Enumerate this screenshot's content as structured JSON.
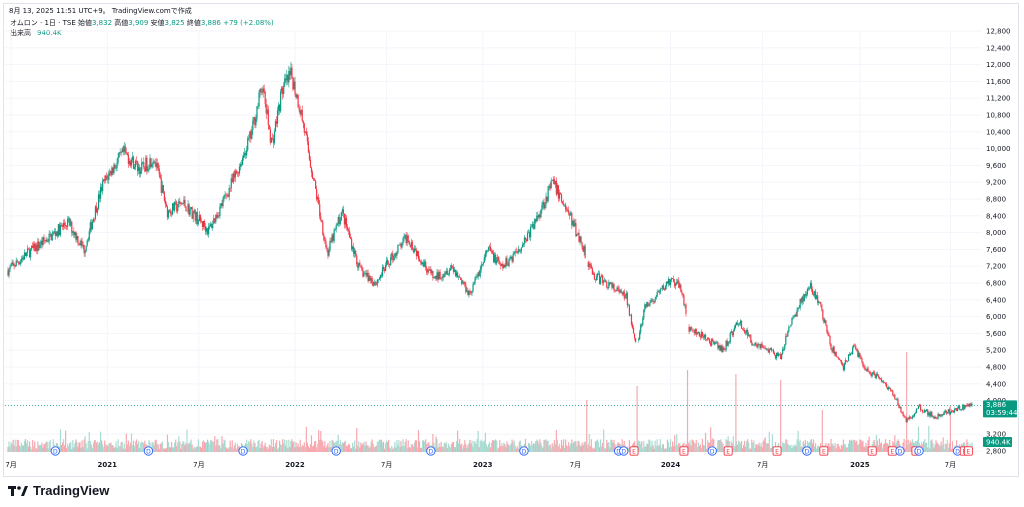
{
  "header": {
    "timestamp": "8月 13, 2025 11:51 UTC+9。 TradingView.comで作成"
  },
  "legend": {
    "symbol": "オムロン · 1日 · TSE",
    "open_label": "始値",
    "open": "3,832",
    "high_label": "高値",
    "high": "3,909",
    "low_label": "安値",
    "low": "3,825",
    "close_label": "終値",
    "close": "3,886",
    "change": "+79 (+2.08%)"
  },
  "volume": {
    "label": "出来高",
    "value": "940.4K"
  },
  "price_tag": {
    "price": "3,886",
    "countdown": "03:59:44",
    "color": "#089981"
  },
  "volume_tag": {
    "value": "940.4K"
  },
  "footer": {
    "brand": "TradingView"
  },
  "colors": {
    "up": "#089981",
    "down": "#f23645",
    "grid": "#f0f3fa",
    "dividend": "#2962ff",
    "earnings": "#f23645"
  },
  "chart_data": {
    "type": "candlestick",
    "y_axis_ticks": [
      "12,800",
      "12,400",
      "12,000",
      "11,600",
      "11,200",
      "10,800",
      "10,400",
      "10,000",
      "9,600",
      "9,200",
      "8,800",
      "8,400",
      "8,000",
      "7,600",
      "7,200",
      "6,800",
      "6,400",
      "6,000",
      "5,600",
      "5,200",
      "4,800",
      "4,400",
      "4,000",
      "3,200",
      "2,800"
    ],
    "ylim": [
      2800,
      12800
    ],
    "x_axis_ticks": [
      {
        "label": "7月",
        "bold": false
      },
      {
        "label": "2021",
        "bold": true
      },
      {
        "label": "7月",
        "bold": false
      },
      {
        "label": "2022",
        "bold": true
      },
      {
        "label": "7月",
        "bold": false
      },
      {
        "label": "2023",
        "bold": true
      },
      {
        "label": "7月",
        "bold": false
      },
      {
        "label": "2024",
        "bold": true
      },
      {
        "label": "7月",
        "bold": false
      },
      {
        "label": "2025",
        "bold": true
      },
      {
        "label": "7月",
        "bold": false
      }
    ],
    "price_path": [
      [
        "2020-06-25",
        7100
      ],
      [
        "2020-08-01",
        7500
      ],
      [
        "2020-09-15",
        7900
      ],
      [
        "2020-10-20",
        8250
      ],
      [
        "2020-11-20",
        7600
      ],
      [
        "2020-12-25",
        9100
      ],
      [
        "2021-01-10",
        9450
      ],
      [
        "2021-02-05",
        9900
      ],
      [
        "2021-03-10",
        9500
      ],
      [
        "2021-04-05",
        9800
      ],
      [
        "2021-05-01",
        8500
      ],
      [
        "2021-06-01",
        8700
      ],
      [
        "2021-07-20",
        8050
      ],
      [
        "2021-08-20",
        8800
      ],
      [
        "2021-09-15",
        9500
      ],
      [
        "2021-10-10",
        10300
      ],
      [
        "2021-11-01",
        11500
      ],
      [
        "2021-11-20",
        10100
      ],
      [
        "2021-12-10",
        11400
      ],
      [
        "2021-12-28",
        11750
      ],
      [
        "2022-01-15",
        10900
      ],
      [
        "2022-02-10",
        9200
      ],
      [
        "2022-03-08",
        7500
      ],
      [
        "2022-04-05",
        8500
      ],
      [
        "2022-05-10",
        7100
      ],
      [
        "2022-06-10",
        6800
      ],
      [
        "2022-07-05",
        7300
      ],
      [
        "2022-08-10",
        7900
      ],
      [
        "2022-09-05",
        7400
      ],
      [
        "2022-10-01",
        6900
      ],
      [
        "2022-11-05",
        7200
      ],
      [
        "2022-12-10",
        6550
      ],
      [
        "2023-01-15",
        7600
      ],
      [
        "2023-02-10",
        7150
      ],
      [
        "2023-03-20",
        7700
      ],
      [
        "2023-04-10",
        8100
      ],
      [
        "2023-05-20",
        9200
      ],
      [
        "2023-06-10",
        8700
      ],
      [
        "2023-06-20",
        8450
      ],
      [
        "2023-07-20",
        7600
      ],
      [
        "2023-08-05",
        7000
      ],
      [
        "2023-09-01",
        6800
      ],
      [
        "2023-10-10",
        6450
      ],
      [
        "2023-10-31",
        5300
      ],
      [
        "2023-11-15",
        6200
      ],
      [
        "2023-12-10",
        6500
      ],
      [
        "2024-01-01",
        6850
      ],
      [
        "2024-01-25",
        6700
      ],
      [
        "2024-02-08",
        5700
      ],
      [
        "2024-03-10",
        5500
      ],
      [
        "2024-04-15",
        5200
      ],
      [
        "2024-05-15",
        5900
      ],
      [
        "2024-06-10",
        5400
      ],
      [
        "2024-07-01",
        5300
      ],
      [
        "2024-08-05",
        5000
      ],
      [
        "2024-08-20",
        5700
      ],
      [
        "2024-09-15",
        6400
      ],
      [
        "2024-10-01",
        6700
      ],
      [
        "2024-10-20",
        6300
      ],
      [
        "2024-11-10",
        5300
      ],
      [
        "2024-12-05",
        4800
      ],
      [
        "2024-12-25",
        5300
      ],
      [
        "2025-01-20",
        4700
      ],
      [
        "2025-02-15",
        4550
      ],
      [
        "2025-03-15",
        4100
      ],
      [
        "2025-04-07",
        3500
      ],
      [
        "2025-05-01",
        3850
      ],
      [
        "2025-06-01",
        3600
      ],
      [
        "2025-07-10",
        3800
      ],
      [
        "2025-08-12",
        3886
      ]
    ],
    "volume_series": "daily volume bars, mostly low with spikes near 2023-07, 2023-10, 2024-02, 2024-05, 2024-08, 2024-10, 2025-04, 2025-07",
    "event_markers": [
      "D",
      "D",
      "D",
      "D",
      "D",
      "D",
      "D",
      "D",
      "E",
      "E",
      "D",
      "E",
      "D",
      "E",
      "E",
      "D",
      "E",
      "E",
      "D",
      "E",
      "D",
      "D",
      "E",
      "E"
    ]
  }
}
